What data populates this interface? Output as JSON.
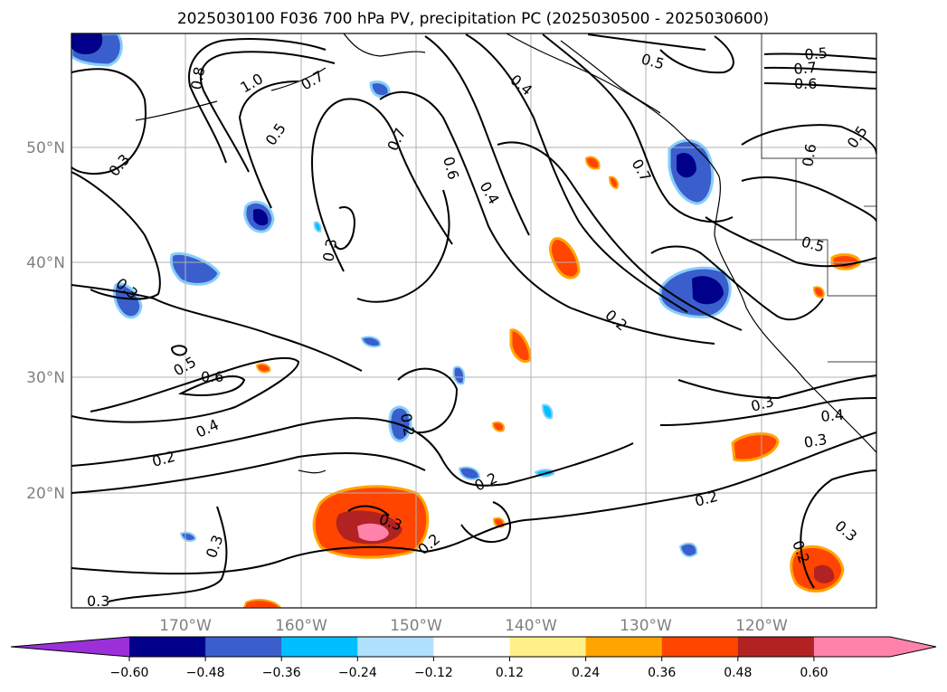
{
  "title": "2025030100 F036 700 hPa PV, precipitation PC (2025030500 - 2025030600)",
  "map": {
    "lat_labels": [
      "50°N",
      "40°N",
      "30°N",
      "20°N"
    ],
    "lon_labels": [
      "170°W",
      "160°W",
      "150°W",
      "140°W",
      "130°W",
      "120°W"
    ],
    "gridlines": true
  },
  "contour_labels": [
    "0.8",
    "1.0",
    "0.7",
    "0.5",
    "0.3",
    "0.3",
    "0.3",
    "0.7",
    "0.6",
    "0.4",
    "0.4",
    "0.7",
    "0.5",
    "0.7",
    "0.6",
    "0.5",
    "0.5",
    "0.6",
    "0.5",
    "0.2",
    "0.5",
    "0.6",
    "0.4",
    "0.2",
    "0.2",
    "0.2",
    "0.3",
    "0.2",
    "0.3",
    "0.3",
    "0.4",
    "0.3",
    "0.2",
    "0.3",
    "0.2",
    "0.3"
  ],
  "colorbar": {
    "colors": [
      "#9b30d9",
      "#00008b",
      "#3a5fcd",
      "#00bfff",
      "#b0e2ff",
      "#ffffff",
      "#fff08a",
      "#ffa500",
      "#ff4500",
      "#b22222",
      "#ff82ab",
      "#ff82ab"
    ],
    "tick_labels": [
      "−0.60",
      "−0.48",
      "−0.36",
      "−0.24",
      "−0.12",
      "0.12",
      "0.24",
      "0.36",
      "0.48",
      "0.60"
    ]
  }
}
